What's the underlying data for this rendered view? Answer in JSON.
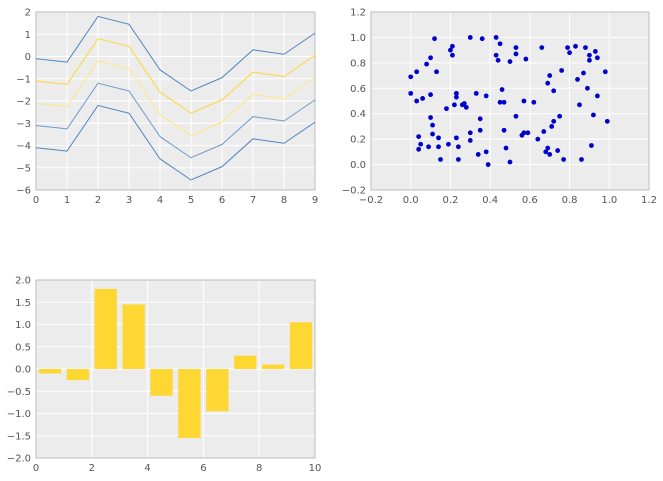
{
  "chart_data": [
    {
      "type": "line",
      "x": [
        0,
        1,
        2,
        3,
        4,
        5,
        6,
        7,
        8,
        9
      ],
      "xlim": [
        0,
        9
      ],
      "ylim": [
        -6,
        2
      ],
      "xticks": [
        "0",
        "1",
        "2",
        "3",
        "4",
        "5",
        "6",
        "7",
        "8",
        "9"
      ],
      "yticks": [
        "−6",
        "−5",
        "−4",
        "−3",
        "−2",
        "−1",
        "0",
        "1",
        "2"
      ],
      "ytick_values": [
        -6,
        -5,
        -4,
        -3,
        -2,
        -1,
        0,
        1,
        2
      ],
      "grid": true,
      "series": [
        {
          "values": [
            -0.1,
            -0.25,
            1.8,
            1.45,
            -0.6,
            -1.55,
            -0.95,
            0.3,
            0.1,
            1.05
          ],
          "color": "#4f86c0"
        },
        {
          "values": [
            -1.1,
            -1.25,
            0.8,
            0.45,
            -1.6,
            -2.55,
            -1.95,
            -0.7,
            -0.9,
            0.05
          ],
          "color": "#ffd733"
        },
        {
          "values": [
            -2.1,
            -2.25,
            -0.2,
            -0.55,
            -2.6,
            -3.55,
            -2.95,
            -1.7,
            -1.9,
            -0.95
          ],
          "color": "#ffe680"
        },
        {
          "values": [
            -3.1,
            -3.25,
            -1.2,
            -1.55,
            -3.6,
            -4.55,
            -3.95,
            -2.7,
            -2.9,
            -1.95
          ],
          "color": "#6f9bcc"
        },
        {
          "values": [
            -4.1,
            -4.25,
            -2.2,
            -2.55,
            -4.6,
            -5.55,
            -4.95,
            -3.7,
            -3.9,
            -2.95
          ],
          "color": "#4f86c0"
        }
      ]
    },
    {
      "type": "scatter",
      "xlim": [
        -0.2,
        1.2
      ],
      "ylim": [
        -0.2,
        1.2
      ],
      "xticks": [
        "−0.2",
        "0.0",
        "0.2",
        "0.4",
        "0.6",
        "0.8",
        "1.0",
        "1.2"
      ],
      "xtick_values": [
        -0.2,
        0.0,
        0.2,
        0.4,
        0.6,
        0.8,
        1.0,
        1.2
      ],
      "yticks": [
        "−0.2",
        "0.0",
        "0.2",
        "0.4",
        "0.6",
        "0.8",
        "1.0",
        "1.2"
      ],
      "ytick_values": [
        -0.2,
        0.0,
        0.2,
        0.4,
        0.6,
        0.8,
        1.0,
        1.2
      ],
      "grid": true,
      "color": "#0000cc",
      "points": [
        [
          0.0,
          0.69
        ],
        [
          0.0,
          0.56
        ],
        [
          0.03,
          0.73
        ],
        [
          0.03,
          0.5
        ],
        [
          0.04,
          0.22
        ],
        [
          0.04,
          0.12
        ],
        [
          0.05,
          0.16
        ],
        [
          0.06,
          0.52
        ],
        [
          0.08,
          0.79
        ],
        [
          0.09,
          0.14
        ],
        [
          0.1,
          0.84
        ],
        [
          0.1,
          0.37
        ],
        [
          0.1,
          0.55
        ],
        [
          0.11,
          0.24
        ],
        [
          0.11,
          0.31
        ],
        [
          0.12,
          0.99
        ],
        [
          0.13,
          0.73
        ],
        [
          0.14,
          0.21
        ],
        [
          0.14,
          0.14
        ],
        [
          0.15,
          0.04
        ],
        [
          0.18,
          0.44
        ],
        [
          0.19,
          0.16
        ],
        [
          0.2,
          0.9
        ],
        [
          0.21,
          0.93
        ],
        [
          0.21,
          0.86
        ],
        [
          0.22,
          0.47
        ],
        [
          0.23,
          0.56
        ],
        [
          0.23,
          0.53
        ],
        [
          0.23,
          0.21
        ],
        [
          0.24,
          0.04
        ],
        [
          0.24,
          0.14
        ],
        [
          0.26,
          0.47
        ],
        [
          0.27,
          0.48
        ],
        [
          0.28,
          0.45
        ],
        [
          0.3,
          1.0
        ],
        [
          0.3,
          0.25
        ],
        [
          0.3,
          0.19
        ],
        [
          0.33,
          0.56
        ],
        [
          0.34,
          0.08
        ],
        [
          0.35,
          0.36
        ],
        [
          0.35,
          0.27
        ],
        [
          0.36,
          0.99
        ],
        [
          0.38,
          0.54
        ],
        [
          0.38,
          0.1
        ],
        [
          0.39,
          0.0
        ],
        [
          0.43,
          1.0
        ],
        [
          0.43,
          0.86
        ],
        [
          0.44,
          0.82
        ],
        [
          0.45,
          0.95
        ],
        [
          0.45,
          0.49
        ],
        [
          0.46,
          0.59
        ],
        [
          0.47,
          0.49
        ],
        [
          0.47,
          0.27
        ],
        [
          0.48,
          0.13
        ],
        [
          0.5,
          0.81
        ],
        [
          0.5,
          0.02
        ],
        [
          0.53,
          0.92
        ],
        [
          0.53,
          0.87
        ],
        [
          0.53,
          0.38
        ],
        [
          0.56,
          0.23
        ],
        [
          0.57,
          0.25
        ],
        [
          0.57,
          0.5
        ],
        [
          0.58,
          0.83
        ],
        [
          0.59,
          0.25
        ],
        [
          0.62,
          0.49
        ],
        [
          0.64,
          0.2
        ],
        [
          0.66,
          0.92
        ],
        [
          0.67,
          0.26
        ],
        [
          0.68,
          0.1
        ],
        [
          0.69,
          0.13
        ],
        [
          0.69,
          0.64
        ],
        [
          0.7,
          0.7
        ],
        [
          0.7,
          0.08
        ],
        [
          0.71,
          0.3
        ],
        [
          0.72,
          0.58
        ],
        [
          0.72,
          0.34
        ],
        [
          0.74,
          0.11
        ],
        [
          0.75,
          0.38
        ],
        [
          0.76,
          0.74
        ],
        [
          0.77,
          0.04
        ],
        [
          0.79,
          0.92
        ],
        [
          0.8,
          0.88
        ],
        [
          0.83,
          0.93
        ],
        [
          0.84,
          0.67
        ],
        [
          0.85,
          0.47
        ],
        [
          0.86,
          0.04
        ],
        [
          0.87,
          0.72
        ],
        [
          0.88,
          0.92
        ],
        [
          0.89,
          0.6
        ],
        [
          0.9,
          0.86
        ],
        [
          0.9,
          0.82
        ],
        [
          0.91,
          0.15
        ],
        [
          0.92,
          0.39
        ],
        [
          0.93,
          0.89
        ],
        [
          0.94,
          0.84
        ],
        [
          0.94,
          0.54
        ],
        [
          0.98,
          0.73
        ],
        [
          0.99,
          0.34
        ]
      ]
    },
    {
      "type": "bar",
      "x": [
        0,
        1,
        2,
        3,
        4,
        5,
        6,
        7,
        8,
        9
      ],
      "values": [
        -0.1,
        -0.25,
        1.8,
        1.45,
        -0.6,
        -1.55,
        -0.95,
        0.3,
        0.1,
        1.05
      ],
      "xlim": [
        0,
        10
      ],
      "ylim": [
        -2.0,
        2.0
      ],
      "xticks": [
        "0",
        "2",
        "4",
        "6",
        "8",
        "10"
      ],
      "xtick_values": [
        0,
        2,
        4,
        6,
        8,
        10
      ],
      "yticks": [
        "−2.0",
        "−1.5",
        "−1.0",
        "−0.5",
        "0.0",
        "0.5",
        "1.0",
        "1.5",
        "2.0"
      ],
      "ytick_values": [
        -2.0,
        -1.5,
        -1.0,
        -0.5,
        0.0,
        0.5,
        1.0,
        1.5,
        2.0
      ],
      "grid": true,
      "color": "#ffd733"
    }
  ]
}
